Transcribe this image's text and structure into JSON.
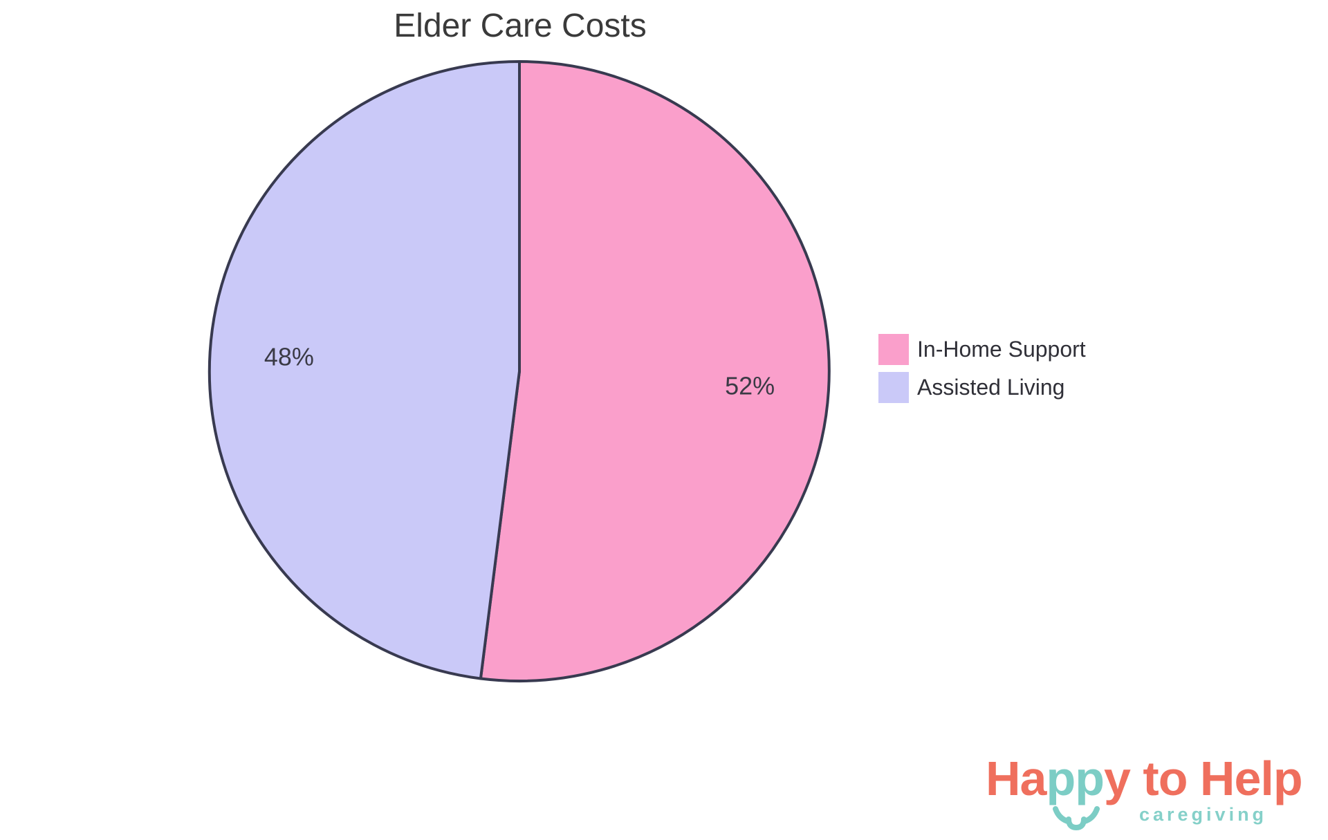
{
  "page": {
    "background": "#FFFFFF"
  },
  "chart": {
    "title_color": "#3A3A3A"
  },
  "chart_data": {
    "type": "pie",
    "title": "Elder Care Costs",
    "labels": [
      "In-Home Support",
      "Assisted Living"
    ],
    "values": [
      52,
      48
    ],
    "value_labels": [
      "52%",
      "48%"
    ],
    "colors": [
      "#FA9FCB",
      "#CAC9F8"
    ],
    "slice_border_color": "#383A50",
    "label_color": "#3A3A45",
    "start_angle": "top",
    "direction": "clockwise",
    "legend_position": "right"
  },
  "legend": {
    "text_color": "#303038",
    "items": [
      {
        "label": "In-Home Support",
        "color": "#FA9FCB"
      },
      {
        "label": "Assisted Living",
        "color": "#CAC9F8"
      }
    ]
  },
  "logo": {
    "seg1": "Ha",
    "seg2": "pp",
    "seg3": "y to Help",
    "tagline": "caregiving",
    "coral": "#EF6F5D",
    "teal": "#7CCDC5",
    "tagline_color": "#85D0C9"
  }
}
